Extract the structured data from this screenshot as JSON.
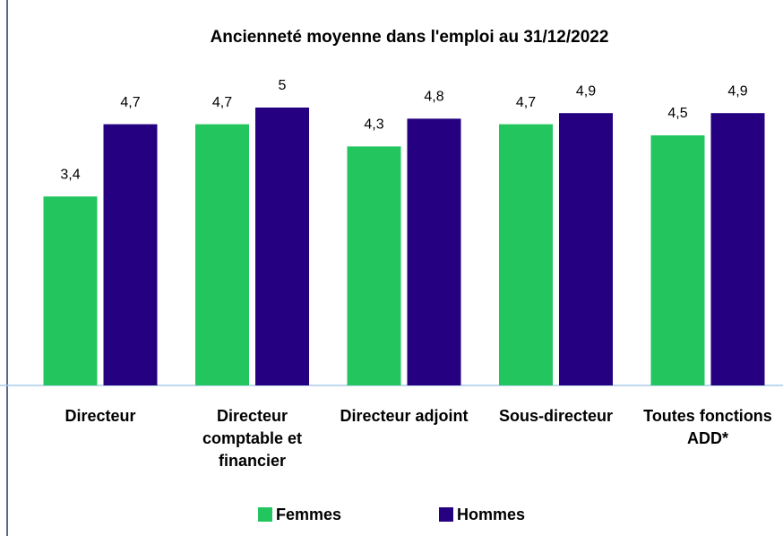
{
  "chart_data": {
    "type": "bar",
    "title": "Ancienneté moyenne dans l'emploi au 31/12/2022",
    "categories": [
      "Directeur",
      "Directeur comptable et financier",
      "Directeur adjoint",
      "Sous-directeur",
      "Toutes fonctions ADD*"
    ],
    "series": [
      {
        "name": "Femmes",
        "color": "#22c55e",
        "values": [
          3.4,
          4.7,
          4.3,
          4.7,
          4.5
        ],
        "value_labels": [
          "3,4",
          "4,7",
          "4,3",
          "4,7",
          "4,5"
        ]
      },
      {
        "name": "Hommes",
        "color": "#250080",
        "values": [
          4.7,
          5,
          4.8,
          4.9,
          4.9
        ],
        "value_labels": [
          "4,7",
          "5",
          "4,8",
          "4,9",
          "4,9"
        ]
      }
    ],
    "legend": "bottom"
  }
}
